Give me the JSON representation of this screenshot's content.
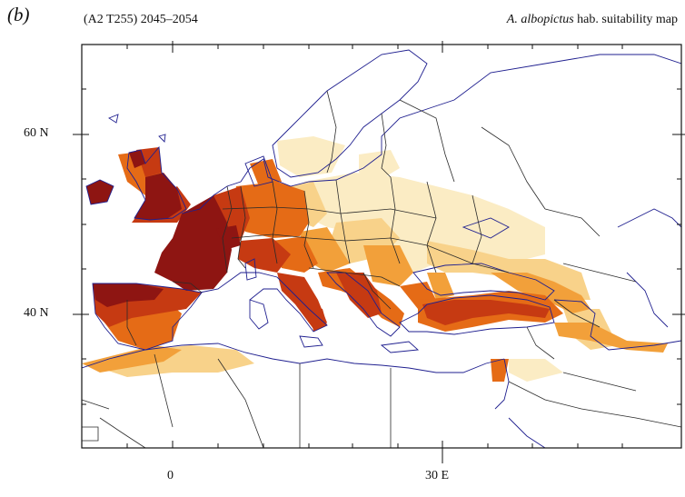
{
  "header": {
    "panel_label": "(b)",
    "run_label": "(A2 T255) 2045–2054",
    "title_species": "A. albopictus",
    "title_rest": " hab. suitability map"
  },
  "axes": {
    "lat_ticks": [
      "60 N",
      "40 N"
    ],
    "lon_ticks": [
      "0",
      "30 E"
    ]
  },
  "colors": {
    "highest": "#8e1512",
    "high": "#c63a12",
    "medium_high": "#e56b16",
    "medium": "#f2a03a",
    "low": "#f8d28a",
    "lowest": "#fbecc4",
    "country_border": "#2a2a2a",
    "coastline": "#1f1f8f"
  }
}
